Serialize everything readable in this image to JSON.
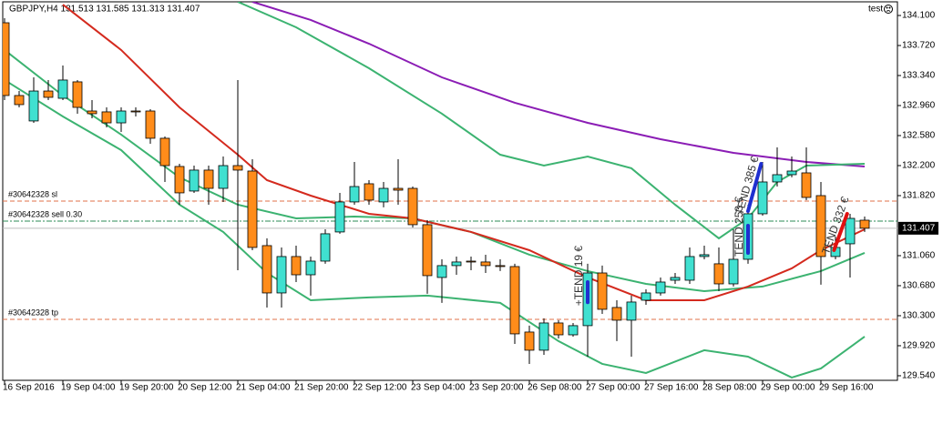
{
  "chart_data": {
    "type": "candlestick",
    "title": "GBPJPY,H4  131.513 131.585 131.313 131.407",
    "account": "test",
    "categories": [
      "16 Sep 2016",
      null,
      null,
      null,
      "19 Sep 04:00",
      null,
      null,
      null,
      "19 Sep 20:00",
      null,
      null,
      null,
      "20 Sep 12:00",
      null,
      null,
      null,
      "21 Sep 04:00",
      null,
      null,
      null,
      "21 Sep 20:00",
      null,
      null,
      null,
      "22 Sep 12:00",
      null,
      null,
      null,
      "23 Sep 04:00",
      null,
      null,
      null,
      "23 Sep 20:00",
      null,
      null,
      null,
      "26 Sep 08:00",
      null,
      null,
      null,
      "27 Sep 00:00",
      null,
      null,
      null,
      "27 Sep 16:00",
      null,
      null,
      null,
      "28 Sep 08:00",
      null,
      null,
      null,
      "29 Sep 00:00",
      null,
      null,
      null,
      "29 Sep 16:00",
      null,
      null,
      null
    ],
    "open": [
      134.008,
      133.087,
      132.765,
      133.144,
      133.052,
      133.26,
      132.891,
      132.88,
      132.741,
      132.891,
      132.891,
      132.546,
      132.189,
      131.878,
      132.143,
      131.912,
      132.2,
      132.131,
      131.187,
      130.588,
      131.049,
      130.818,
      130.991,
      131.36,
      131.74,
      131.97,
      131.74,
      131.912,
      131.912,
      131.452,
      130.784,
      130.934,
      130.991,
      130.98,
      130.934,
      130.922,
      130.093,
      129.863,
      130.208,
      130.058,
      130.174,
      130.841,
      130.404,
      130.243,
      130.496,
      130.588,
      130.749,
      130.749,
      131.049,
      130.957,
      130.703,
      131.014,
      131.59,
      131.993,
      132.085,
      132.108,
      131.82,
      131.049,
      131.21,
      131.509
    ],
    "high": [
      134.066,
      133.144,
      133.317,
      133.283,
      133.467,
      133.283,
      133.029,
      132.937,
      132.937,
      132.937,
      132.914,
      132.569,
      132.223,
      132.2,
      132.2,
      132.315,
      133.283,
      132.281,
      131.279,
      131.164,
      131.187,
      131.049,
      131.394,
      131.855,
      132.246,
      132.016,
      131.993,
      132.281,
      131.935,
      131.509,
      131.014,
      131.049,
      131.049,
      131.072,
      131.014,
      130.957,
      130.174,
      130.266,
      130.243,
      130.208,
      130.957,
      130.934,
      130.496,
      130.554,
      130.634,
      130.784,
      130.841,
      131.164,
      131.187,
      131.164,
      131.394,
      131.705,
      132.246,
      132.431,
      132.315,
      132.431,
      131.993,
      131.302,
      131.59,
      131.555
    ],
    "low": [
      133.029,
      132.937,
      132.741,
      133.029,
      133.029,
      132.857,
      132.799,
      132.684,
      132.626,
      132.822,
      132.477,
      131.993,
      131.705,
      131.855,
      131.705,
      131.74,
      130.876,
      131.129,
      130.404,
      130.404,
      130.726,
      130.554,
      130.957,
      131.337,
      131.705,
      131.705,
      131.671,
      131.705,
      131.417,
      130.577,
      130.462,
      130.818,
      130.876,
      130.841,
      130.865,
      129.943,
      129.69,
      129.805,
      130.012,
      130.035,
      129.782,
      130.323,
      129.978,
      129.782,
      130.438,
      130.554,
      130.703,
      130.703,
      131.014,
      130.611,
      130.669,
      130.957,
      131.567,
      131.935,
      132.051,
      131.763,
      130.692,
      131.014,
      130.784,
      131.36
    ],
    "close": [
      133.087,
      132.972,
      133.144,
      133.064,
      133.283,
      132.937,
      132.857,
      132.741,
      132.891,
      132.88,
      132.546,
      132.2,
      131.855,
      132.143,
      131.912,
      132.2,
      132.143,
      131.164,
      130.588,
      131.049,
      130.818,
      130.991,
      131.337,
      131.74,
      131.935,
      131.763,
      131.912,
      131.889,
      131.452,
      130.807,
      130.934,
      130.98,
      130.98,
      130.934,
      130.922,
      130.07,
      129.863,
      130.208,
      130.058,
      130.174,
      130.841,
      130.381,
      130.243,
      130.473,
      130.588,
      130.726,
      130.784,
      131.049,
      131.072,
      130.703,
      131.014,
      131.59,
      131.993,
      132.085,
      132.131,
      131.797,
      131.049,
      131.164,
      131.532,
      131.407
    ],
    "up_color": "#40e0d0",
    "down_color": "#ff8c1a",
    "indicators": [
      {
        "color": "#8b1db5",
        "x": [
          17,
          21,
          25,
          30,
          35,
          40,
          45,
          50,
          55,
          59
        ],
        "values": [
          134.273,
          134.043,
          133.743,
          133.317,
          132.995,
          132.741,
          132.534,
          132.361,
          132.246,
          132.189
        ]
      },
      {
        "color": "#3cb371",
        "x": [
          16,
          20,
          25,
          30,
          34,
          37,
          40,
          43,
          46,
          49,
          51,
          53,
          55,
          59
        ],
        "values": [
          134.273,
          133.951,
          133.432,
          132.857,
          132.338,
          132.2,
          132.315,
          132.166,
          131.705,
          131.279,
          131.532,
          131.993,
          132.2,
          132.223
        ]
      },
      {
        "color": "#3cb371",
        "x": [
          0,
          4,
          8,
          12,
          16,
          20,
          24,
          28,
          32,
          36,
          40,
          44,
          48,
          52,
          56,
          59
        ],
        "values": [
          133.663,
          133.087,
          132.592,
          132.051,
          131.705,
          131.532,
          131.555,
          131.532,
          131.36,
          131.072,
          130.865,
          130.703,
          130.611,
          130.669,
          130.865,
          131.095
        ]
      },
      {
        "color": "#3cb371",
        "x": [
          0,
          4,
          8,
          12,
          15,
          18,
          21,
          25,
          29,
          34,
          38,
          41,
          44,
          48,
          51,
          54,
          56,
          59
        ],
        "values": [
          133.283,
          132.822,
          132.396,
          131.705,
          131.36,
          130.841,
          130.496,
          130.531,
          130.554,
          130.462,
          129.978,
          129.69,
          129.575,
          129.863,
          129.782,
          129.517,
          129.632,
          130.035
        ]
      },
      {
        "color": "#d42a1e",
        "x": [
          4,
          8,
          12,
          16,
          18,
          21,
          25,
          28,
          32,
          36,
          40,
          44,
          48,
          51,
          54,
          56,
          59
        ],
        "values": [
          134.238,
          133.663,
          132.937,
          132.338,
          132.016,
          131.82,
          131.59,
          131.532,
          131.36,
          131.129,
          130.784,
          130.496,
          130.496,
          130.669,
          130.899,
          131.129,
          131.394
        ]
      }
    ],
    "levels": [
      {
        "label": "#30642328 sl",
        "value": 131.751,
        "color": "#e0704a"
      },
      {
        "label": "#30642328 sell 0.30",
        "value": 131.498,
        "color": "#2e8b57"
      },
      {
        "label": "#30642328 tp",
        "value": 130.254,
        "color": "#e0704a"
      }
    ],
    "last": 131.407,
    "annotations": [
      {
        "text": "+TEND 19 €",
        "color": "#1f2fd0",
        "x": [
          40,
          40
        ],
        "y": [
          130.469,
          130.726
        ]
      },
      {
        "text": "TEND 253 €",
        "color": "#1f2fd0",
        "x": [
          51,
          51
        ],
        "y": [
          131.095,
          131.44
        ]
      },
      {
        "text": "TEND 385 €",
        "color": "#1f2fd0",
        "x": [
          51,
          51.9
        ],
        "y": [
          131.624,
          132.223
        ]
      },
      {
        "text": "TEND 332 €",
        "color": "#e01010",
        "x": [
          56.9,
          57.8
        ],
        "y": [
          131.129,
          131.59
        ]
      }
    ],
    "ylim": [
      129.482,
      134.273
    ],
    "yticks": [
      {
        "value": 134.1,
        "label": "134.100"
      },
      {
        "value": 133.72,
        "label": "133.720"
      },
      {
        "value": 133.34,
        "label": "133.340"
      },
      {
        "value": 132.96,
        "label": "132.960"
      },
      {
        "value": 132.58,
        "label": "132.580"
      },
      {
        "value": 132.2,
        "label": "132.200"
      },
      {
        "value": 131.82,
        "label": "131.820"
      },
      {
        "value": 131.06,
        "label": "131.060"
      },
      {
        "value": 130.68,
        "label": "130.680"
      },
      {
        "value": 130.3,
        "label": "130.300"
      },
      {
        "value": 129.92,
        "label": "129.920"
      },
      {
        "value": 129.54,
        "label": "129.540"
      }
    ]
  }
}
